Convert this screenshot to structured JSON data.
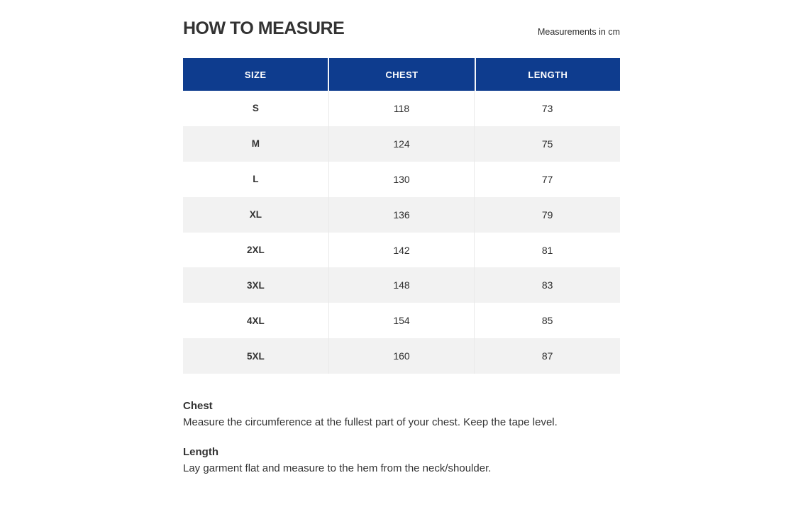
{
  "page": {
    "title": "HOW TO MEASURE",
    "note": "Measurements in cm"
  },
  "table": {
    "headers": [
      "SIZE",
      "CHEST",
      "LENGTH"
    ],
    "rows": [
      {
        "size": "S",
        "chest": "118",
        "length": "73"
      },
      {
        "size": "M",
        "chest": "124",
        "length": "75"
      },
      {
        "size": "L",
        "chest": "130",
        "length": "77"
      },
      {
        "size": "XL",
        "chest": "136",
        "length": "79"
      },
      {
        "size": "2XL",
        "chest": "142",
        "length": "81"
      },
      {
        "size": "3XL",
        "chest": "148",
        "length": "83"
      },
      {
        "size": "4XL",
        "chest": "154",
        "length": "85"
      },
      {
        "size": "5XL",
        "chest": "160",
        "length": "87"
      }
    ]
  },
  "footer": {
    "sections": [
      {
        "heading": "Chest",
        "text": "Measure the circumference at the fullest part of your chest. Keep the tape level."
      },
      {
        "heading": "Length",
        "text": "Lay garment flat and measure to the hem from the neck/shoulder."
      }
    ]
  },
  "colors": {
    "header_bg": "#0e3c8e",
    "header_text": "#ffffff",
    "row_alt_bg": "#f2f2f2",
    "body_text": "#333333"
  }
}
